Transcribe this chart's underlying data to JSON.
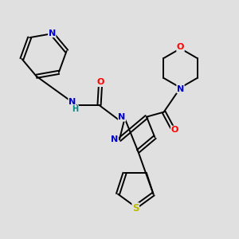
{
  "background_color": "#e0e0e0",
  "bond_color": "#000000",
  "atom_colors": {
    "N": "#0000cc",
    "O": "#ff0000",
    "S": "#bbbb00",
    "H": "#008888",
    "C": "#000000"
  }
}
